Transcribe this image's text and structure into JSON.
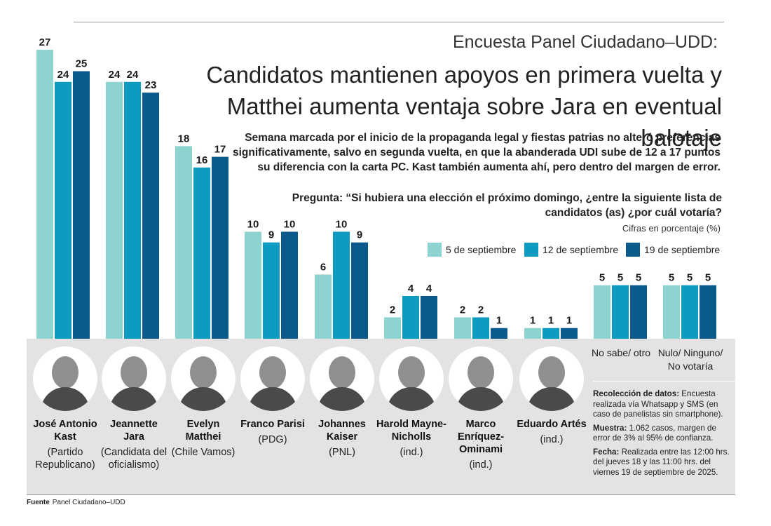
{
  "header": {
    "kicker": "Encuesta Panel Ciudadano–UDD:",
    "title": "Candidatos mantienen apoyos en primera vuelta y Matthei aumenta ventaja sobre Jara en eventual balotaje",
    "subtitle": "Semana marcada por el inicio de la propaganda legal y fiestas patrias no alteró preferencias significativamente, salvo en segunda vuelta, en que la abanderada UDI sube de 12 a 17 puntos su diferencia con la carta PC. Kast también aumenta ahí, pero dentro del margen de error.",
    "question": "Pregunta: “Si hubiera una elección el próximo domingo, ¿entre la siguiente lista de candidatos (as) ¿por cuál votaría?",
    "units": "Cifras en porcentaje (%)"
  },
  "colors": {
    "series_1": "#8dd3cf",
    "series_2": "#0d9bc2",
    "series_3": "#0b5a8c",
    "band": "#e3e3e3"
  },
  "chart_data": {
    "type": "bar",
    "categories": [
      "José Antonio Kast",
      "Jeannette Jara",
      "Evelyn Matthei",
      "Franco Parisi",
      "Johannes Kaiser",
      "Harold Mayne-Nicholls",
      "Marco Enríquez-Ominami",
      "Eduardo Artés",
      "No sabe/ otro",
      "Nulo/ Ninguno/ No votaría"
    ],
    "series": [
      {
        "name": "5 de septiembre",
        "values": [
          27,
          24,
          18,
          10,
          6,
          2,
          2,
          1,
          5,
          5
        ]
      },
      {
        "name": "12 de septiembre",
        "values": [
          24,
          24,
          16,
          9,
          10,
          4,
          2,
          1,
          5,
          5
        ]
      },
      {
        "name": "19 de septiembre",
        "values": [
          25,
          23,
          17,
          10,
          9,
          4,
          1,
          1,
          5,
          5
        ]
      }
    ],
    "ylim": [
      0,
      27
    ],
    "grid": false,
    "legend": "top-right"
  },
  "candidates": [
    {
      "name": "José Antonio Kast",
      "party": "(Partido Republicano)"
    },
    {
      "name": "Jeannette Jara",
      "party": "(Candidata del oficialismo)"
    },
    {
      "name": "Evelyn Matthei",
      "party": "(Chile Vamos)"
    },
    {
      "name": "Franco Parisi",
      "party": "(PDG)"
    },
    {
      "name": "Johannes Kaiser",
      "party": "(PNL)"
    },
    {
      "name": "Harold Mayne-Nicholls",
      "party": "(ind.)"
    },
    {
      "name": "Marco Enríquez-Ominami",
      "party": "(ind.)"
    },
    {
      "name": "Eduardo Artés",
      "party": "(ind.)"
    }
  ],
  "other_labels": [
    "No sabe/ otro",
    "Nulo/ Ninguno/ No votaría"
  ],
  "notes": {
    "collection_label": "Recolección de datos:",
    "collection_text": "Encuesta realizada vía Whatsapp y SMS (en caso de panelistas sin smartphone).",
    "sample_label": "Muestra:",
    "sample_text": "1.062 casos, margen de error de 3% al 95% de confianza.",
    "date_label": "Fecha:",
    "date_text": "Realizada entre las 12:00 hrs. del jueves 18 y las 11:00 hrs. del viernes 19 de septiembre de 2025."
  },
  "source": {
    "label": "Fuente",
    "text": "Panel Ciudadano–UDD"
  }
}
